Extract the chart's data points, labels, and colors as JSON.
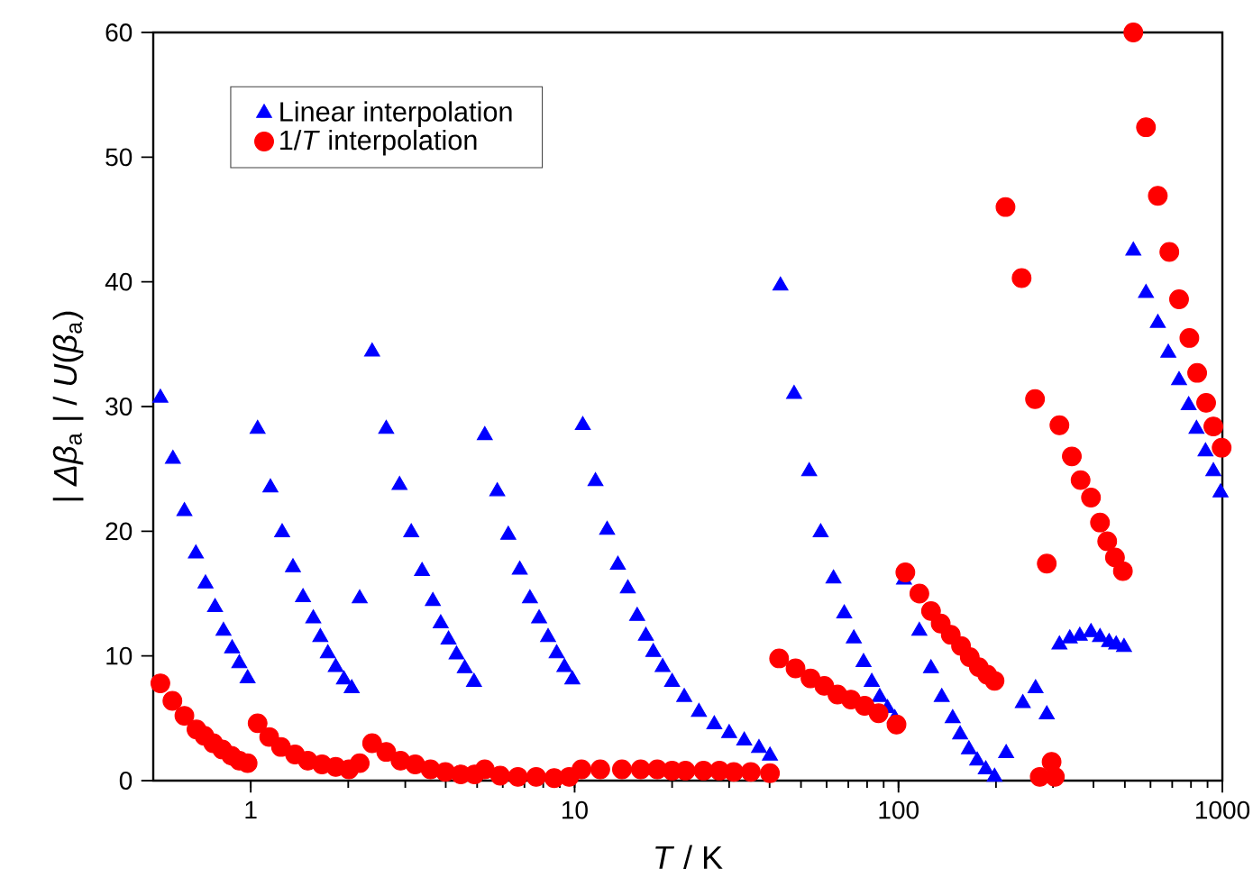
{
  "chart_data": {
    "type": "scatter",
    "xlabel": "*T* / K",
    "ylabel": "| *Δβ*$_{a}$ | / *U*(*β*$_{a}$)",
    "log": "x",
    "xlim": [
      0.5,
      1000
    ],
    "ylim": [
      0,
      60
    ],
    "xticks": [
      1,
      10,
      100,
      1000
    ],
    "yticks": [
      0,
      10,
      20,
      30,
      40,
      50,
      60
    ],
    "legend": "top left",
    "grid": false,
    "series": [
      {
        "name": "Linear interpolation",
        "color": "#0000ff",
        "marker": "triangle",
        "x": [
          0.526,
          0.575,
          0.624,
          0.677,
          0.725,
          0.776,
          0.824,
          0.876,
          0.922,
          0.978,
          1.05,
          1.15,
          1.25,
          1.35,
          1.45,
          1.56,
          1.64,
          1.73,
          1.83,
          1.94,
          2.05,
          2.17,
          2.37,
          2.62,
          2.88,
          3.13,
          3.38,
          3.65,
          3.86,
          4.08,
          4.32,
          4.58,
          4.89,
          5.28,
          5.77,
          6.24,
          6.77,
          7.28,
          7.77,
          8.28,
          8.8,
          9.3,
          9.84,
          10.6,
          11.6,
          12.6,
          13.6,
          14.6,
          15.6,
          16.6,
          17.5,
          18.7,
          20.0,
          21.8,
          24.2,
          27.0,
          30.0,
          33.4,
          37.1,
          40.1,
          43.2,
          47.6,
          53.0,
          57.5,
          63.0,
          68.0,
          72.8,
          78.0,
          82.7,
          87.5,
          92.5,
          97.4,
          104,
          116,
          126,
          136,
          147,
          155,
          165,
          175,
          186,
          198,
          215,
          242,
          265,
          287,
          314,
          338,
          363,
          393,
          419,
          447,
          470,
          497,
          531,
          581,
          632,
          681,
          735,
          787,
          832,
          887,
          938,
          987
        ],
        "values": [
          30.7,
          25.8,
          21.6,
          18.2,
          15.8,
          13.9,
          12.0,
          10.6,
          9.4,
          8.2,
          28.2,
          23.5,
          19.9,
          17.1,
          14.7,
          13.0,
          11.5,
          10.2,
          9.1,
          8.1,
          7.4,
          14.6,
          34.4,
          28.2,
          23.7,
          19.9,
          16.8,
          14.4,
          12.6,
          11.3,
          10.1,
          9.0,
          7.9,
          27.7,
          23.2,
          19.7,
          16.9,
          14.6,
          13.0,
          11.5,
          10.2,
          9.1,
          8.1,
          28.5,
          24.0,
          20.1,
          17.3,
          15.4,
          13.2,
          11.6,
          10.3,
          9.1,
          7.9,
          6.7,
          5.5,
          4.5,
          3.8,
          3.2,
          2.6,
          2.0,
          39.7,
          31.0,
          24.8,
          19.9,
          16.2,
          13.4,
          11.4,
          9.5,
          7.9,
          6.7,
          5.8,
          5.0,
          16.1,
          12.0,
          9.0,
          6.7,
          5.0,
          3.7,
          2.5,
          1.6,
          0.9,
          0.3,
          2.2,
          6.2,
          7.4,
          5.3,
          10.9,
          11.4,
          11.6,
          11.9,
          11.5,
          11.1,
          10.9,
          10.7,
          42.5,
          39.1,
          36.7,
          34.3,
          32.1,
          30.1,
          28.2,
          26.4,
          24.8,
          23.1
        ]
      },
      {
        "name": "1/*T* interpolation",
        "color": "#ff0000",
        "marker": "circle",
        "x": [
          0.526,
          0.573,
          0.624,
          0.68,
          0.719,
          0.766,
          0.817,
          0.871,
          0.922,
          0.978,
          1.05,
          1.14,
          1.24,
          1.37,
          1.5,
          1.66,
          1.83,
          2.01,
          2.17,
          2.37,
          2.62,
          2.9,
          3.22,
          3.59,
          3.99,
          4.45,
          4.91,
          5.28,
          5.89,
          6.68,
          7.61,
          8.65,
          9.62,
          10.5,
          12,
          14,
          16,
          18,
          20,
          22,
          25,
          28,
          31,
          35,
          40.1,
          42.8,
          48.1,
          53.5,
          59.0,
          64.8,
          71.3,
          78.6,
          86.8,
          98.6,
          105,
          116,
          126,
          135,
          145,
          156,
          166,
          177,
          188,
          198,
          214,
          240,
          264,
          273,
          287,
          297,
          304,
          314,
          343,
          365,
          393,
          419,
          441,
          466,
          493,
          531,
          581,
          632,
          686,
          735,
          791,
          836,
          891,
          938,
          995
        ],
        "values": [
          7.8,
          6.4,
          5.2,
          4.1,
          3.6,
          3.0,
          2.5,
          2.0,
          1.6,
          1.4,
          4.6,
          3.5,
          2.7,
          2.1,
          1.6,
          1.3,
          1.1,
          0.9,
          1.4,
          3.0,
          2.3,
          1.6,
          1.3,
          0.9,
          0.7,
          0.5,
          0.5,
          0.9,
          0.4,
          0.3,
          0.3,
          0.2,
          0.3,
          0.9,
          0.9,
          0.9,
          0.9,
          0.9,
          0.8,
          0.8,
          0.8,
          0.8,
          0.7,
          0.7,
          0.6,
          9.8,
          9.0,
          8.2,
          7.6,
          6.9,
          6.5,
          6.0,
          5.4,
          4.5,
          16.7,
          15.0,
          13.6,
          12.6,
          11.7,
          10.8,
          9.9,
          9.1,
          8.5,
          8.0,
          46.0,
          40.3,
          30.6,
          0.3,
          17.4,
          1.5,
          0.3,
          28.5,
          26.0,
          24.1,
          22.7,
          20.7,
          19.2,
          17.9,
          16.8,
          60.0,
          52.4,
          46.9,
          42.4,
          38.6,
          35.5,
          32.7,
          30.3,
          28.4,
          26.7
        ]
      }
    ]
  }
}
